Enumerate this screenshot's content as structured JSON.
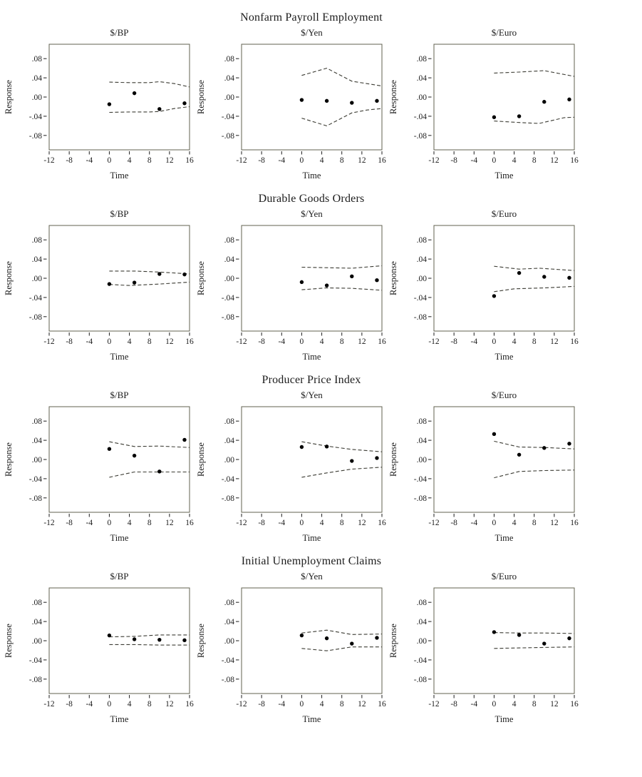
{
  "chart_data": {
    "type": "scatter",
    "description": "4x3 grid of impulse-response panels: dots are responses at horizons 0,5,10,15 with dashed upper/lower confidence bands",
    "style": {
      "band_color": "#3c3c34",
      "point_color": "#000000",
      "frame_color": "#60604f",
      "text_color": "#1c1c1c",
      "background": "#ffffff"
    },
    "axes": {
      "xlabel": "Time",
      "ylabel": "Response",
      "xlim": [
        -12,
        16
      ],
      "ylim": [
        -0.11,
        0.11
      ],
      "xticks": [
        -12,
        -8,
        -4,
        0,
        4,
        8,
        12,
        16
      ],
      "xtick_labels": [
        "-12",
        "-8",
        "-4",
        "0",
        "4",
        "8",
        "12",
        "16"
      ],
      "yticks": [
        0.08,
        0.04,
        0.0,
        -0.04,
        -0.08
      ],
      "ytick_labels": [
        ".08",
        ".04",
        ".00",
        "-.04",
        "-.08"
      ],
      "grid": false,
      "legend": false
    },
    "rows": [
      {
        "title": "Nonfarm Payroll Employment",
        "panels": [
          {
            "subtitle": "$/BP",
            "points": {
              "x": [
                0,
                5,
                10,
                15
              ],
              "y": [
                -0.015,
                0.008,
                -0.025,
                -0.013
              ]
            },
            "upper_band": [
              [
                0,
                0.031
              ],
              [
                4,
                0.03
              ],
              [
                8,
                0.03
              ],
              [
                10,
                0.032
              ],
              [
                13,
                0.028
              ],
              [
                16,
                0.021
              ]
            ],
            "lower_band": [
              [
                0,
                -0.032
              ],
              [
                4,
                -0.031
              ],
              [
                8,
                -0.031
              ],
              [
                10,
                -0.03
              ],
              [
                13,
                -0.024
              ],
              [
                16,
                -0.02
              ]
            ]
          },
          {
            "subtitle": "$/Yen",
            "points": {
              "x": [
                0,
                5,
                10,
                15
              ],
              "y": [
                -0.006,
                -0.008,
                -0.012,
                -0.008
              ]
            },
            "upper_band": [
              [
                0,
                0.045
              ],
              [
                5,
                0.06
              ],
              [
                10,
                0.033
              ],
              [
                13,
                0.028
              ],
              [
                16,
                0.023
              ]
            ],
            "lower_band": [
              [
                0,
                -0.044
              ],
              [
                5,
                -0.06
              ],
              [
                10,
                -0.033
              ],
              [
                13,
                -0.027
              ],
              [
                16,
                -0.024
              ]
            ]
          },
          {
            "subtitle": "$/Euro",
            "points": {
              "x": [
                0,
                5,
                10,
                15
              ],
              "y": [
                -0.042,
                -0.04,
                -0.01,
                -0.005
              ]
            },
            "upper_band": [
              [
                0,
                0.05
              ],
              [
                5,
                0.052
              ],
              [
                10,
                0.055
              ],
              [
                16,
                0.043
              ]
            ],
            "lower_band": [
              [
                0,
                -0.05
              ],
              [
                5,
                -0.053
              ],
              [
                9,
                -0.055
              ],
              [
                14,
                -0.043
              ],
              [
                16,
                -0.042
              ]
            ]
          }
        ]
      },
      {
        "title": "Durable Goods Orders",
        "panels": [
          {
            "subtitle": "$/BP",
            "points": {
              "x": [
                0,
                5,
                10,
                15
              ],
              "y": [
                -0.012,
                -0.009,
                0.009,
                0.008
              ]
            },
            "upper_band": [
              [
                0,
                0.015
              ],
              [
                5,
                0.015
              ],
              [
                10,
                0.013
              ],
              [
                16,
                0.009
              ]
            ],
            "lower_band": [
              [
                0,
                -0.013
              ],
              [
                4,
                -0.015
              ],
              [
                10,
                -0.012
              ],
              [
                16,
                -0.008
              ]
            ]
          },
          {
            "subtitle": "$/Yen",
            "points": {
              "x": [
                0,
                5,
                10,
                15
              ],
              "y": [
                -0.008,
                -0.015,
                0.004,
                -0.004
              ]
            },
            "upper_band": [
              [
                0,
                0.023
              ],
              [
                5,
                0.022
              ],
              [
                10,
                0.021
              ],
              [
                16,
                0.026
              ]
            ],
            "lower_band": [
              [
                0,
                -0.024
              ],
              [
                5,
                -0.02
              ],
              [
                10,
                -0.021
              ],
              [
                16,
                -0.025
              ]
            ]
          },
          {
            "subtitle": "$/Euro",
            "points": {
              "x": [
                0,
                5,
                10,
                15
              ],
              "y": [
                -0.037,
                0.011,
                0.003,
                0.001
              ]
            },
            "upper_band": [
              [
                0,
                0.025
              ],
              [
                5,
                0.019
              ],
              [
                9,
                0.021
              ],
              [
                16,
                0.016
              ]
            ],
            "lower_band": [
              [
                0,
                -0.028
              ],
              [
                4,
                -0.022
              ],
              [
                10,
                -0.02
              ],
              [
                16,
                -0.017
              ]
            ]
          }
        ]
      },
      {
        "title": "Producer Price Index",
        "panels": [
          {
            "subtitle": "$/BP",
            "points": {
              "x": [
                0,
                5,
                10,
                15
              ],
              "y": [
                0.022,
                0.008,
                -0.025,
                0.041
              ]
            },
            "upper_band": [
              [
                0,
                0.037
              ],
              [
                5,
                0.027
              ],
              [
                10,
                0.028
              ],
              [
                16,
                0.025
              ]
            ],
            "lower_band": [
              [
                0,
                -0.037
              ],
              [
                5,
                -0.026
              ],
              [
                10,
                -0.026
              ],
              [
                16,
                -0.026
              ]
            ]
          },
          {
            "subtitle": "$/Yen",
            "points": {
              "x": [
                0,
                5,
                10,
                15
              ],
              "y": [
                0.026,
                0.027,
                -0.003,
                0.003
              ]
            },
            "upper_band": [
              [
                0,
                0.037
              ],
              [
                5,
                0.028
              ],
              [
                10,
                0.021
              ],
              [
                16,
                0.016
              ]
            ],
            "lower_band": [
              [
                0,
                -0.037
              ],
              [
                5,
                -0.028
              ],
              [
                10,
                -0.02
              ],
              [
                16,
                -0.016
              ]
            ]
          },
          {
            "subtitle": "$/Euro",
            "points": {
              "x": [
                0,
                5,
                10,
                15
              ],
              "y": [
                0.053,
                0.01,
                0.024,
                0.033
              ]
            },
            "upper_band": [
              [
                0,
                0.038
              ],
              [
                5,
                0.026
              ],
              [
                10,
                0.025
              ],
              [
                16,
                0.022
              ]
            ],
            "lower_band": [
              [
                0,
                -0.038
              ],
              [
                5,
                -0.025
              ],
              [
                10,
                -0.023
              ],
              [
                16,
                -0.022
              ]
            ]
          }
        ]
      },
      {
        "title": "Initial Unemployment Claims",
        "panels": [
          {
            "subtitle": "$/BP",
            "points": {
              "x": [
                0,
                5,
                10,
                15
              ],
              "y": [
                0.011,
                0.003,
                0.002,
                0.001
              ]
            },
            "upper_band": [
              [
                0,
                0.008
              ],
              [
                5,
                0.009
              ],
              [
                10,
                0.012
              ],
              [
                16,
                0.012
              ]
            ],
            "lower_band": [
              [
                0,
                -0.008
              ],
              [
                5,
                -0.008
              ],
              [
                10,
                -0.009
              ],
              [
                16,
                -0.009
              ]
            ]
          },
          {
            "subtitle": "$/Yen",
            "points": {
              "x": [
                0,
                5,
                10,
                15
              ],
              "y": [
                0.011,
                0.005,
                -0.006,
                0.006
              ]
            },
            "upper_band": [
              [
                0,
                0.016
              ],
              [
                5,
                0.022
              ],
              [
                10,
                0.013
              ],
              [
                16,
                0.014
              ]
            ],
            "lower_band": [
              [
                0,
                -0.016
              ],
              [
                5,
                -0.021
              ],
              [
                10,
                -0.013
              ],
              [
                16,
                -0.013
              ]
            ]
          },
          {
            "subtitle": "$/Euro",
            "points": {
              "x": [
                0,
                5,
                10,
                15
              ],
              "y": [
                0.018,
                0.012,
                -0.006,
                0.005
              ]
            },
            "upper_band": [
              [
                0,
                0.017
              ],
              [
                5,
                0.016
              ],
              [
                10,
                0.016
              ],
              [
                16,
                0.015
              ]
            ],
            "lower_band": [
              [
                0,
                -0.016
              ],
              [
                5,
                -0.015
              ],
              [
                10,
                -0.014
              ],
              [
                16,
                -0.013
              ]
            ]
          }
        ]
      }
    ]
  }
}
